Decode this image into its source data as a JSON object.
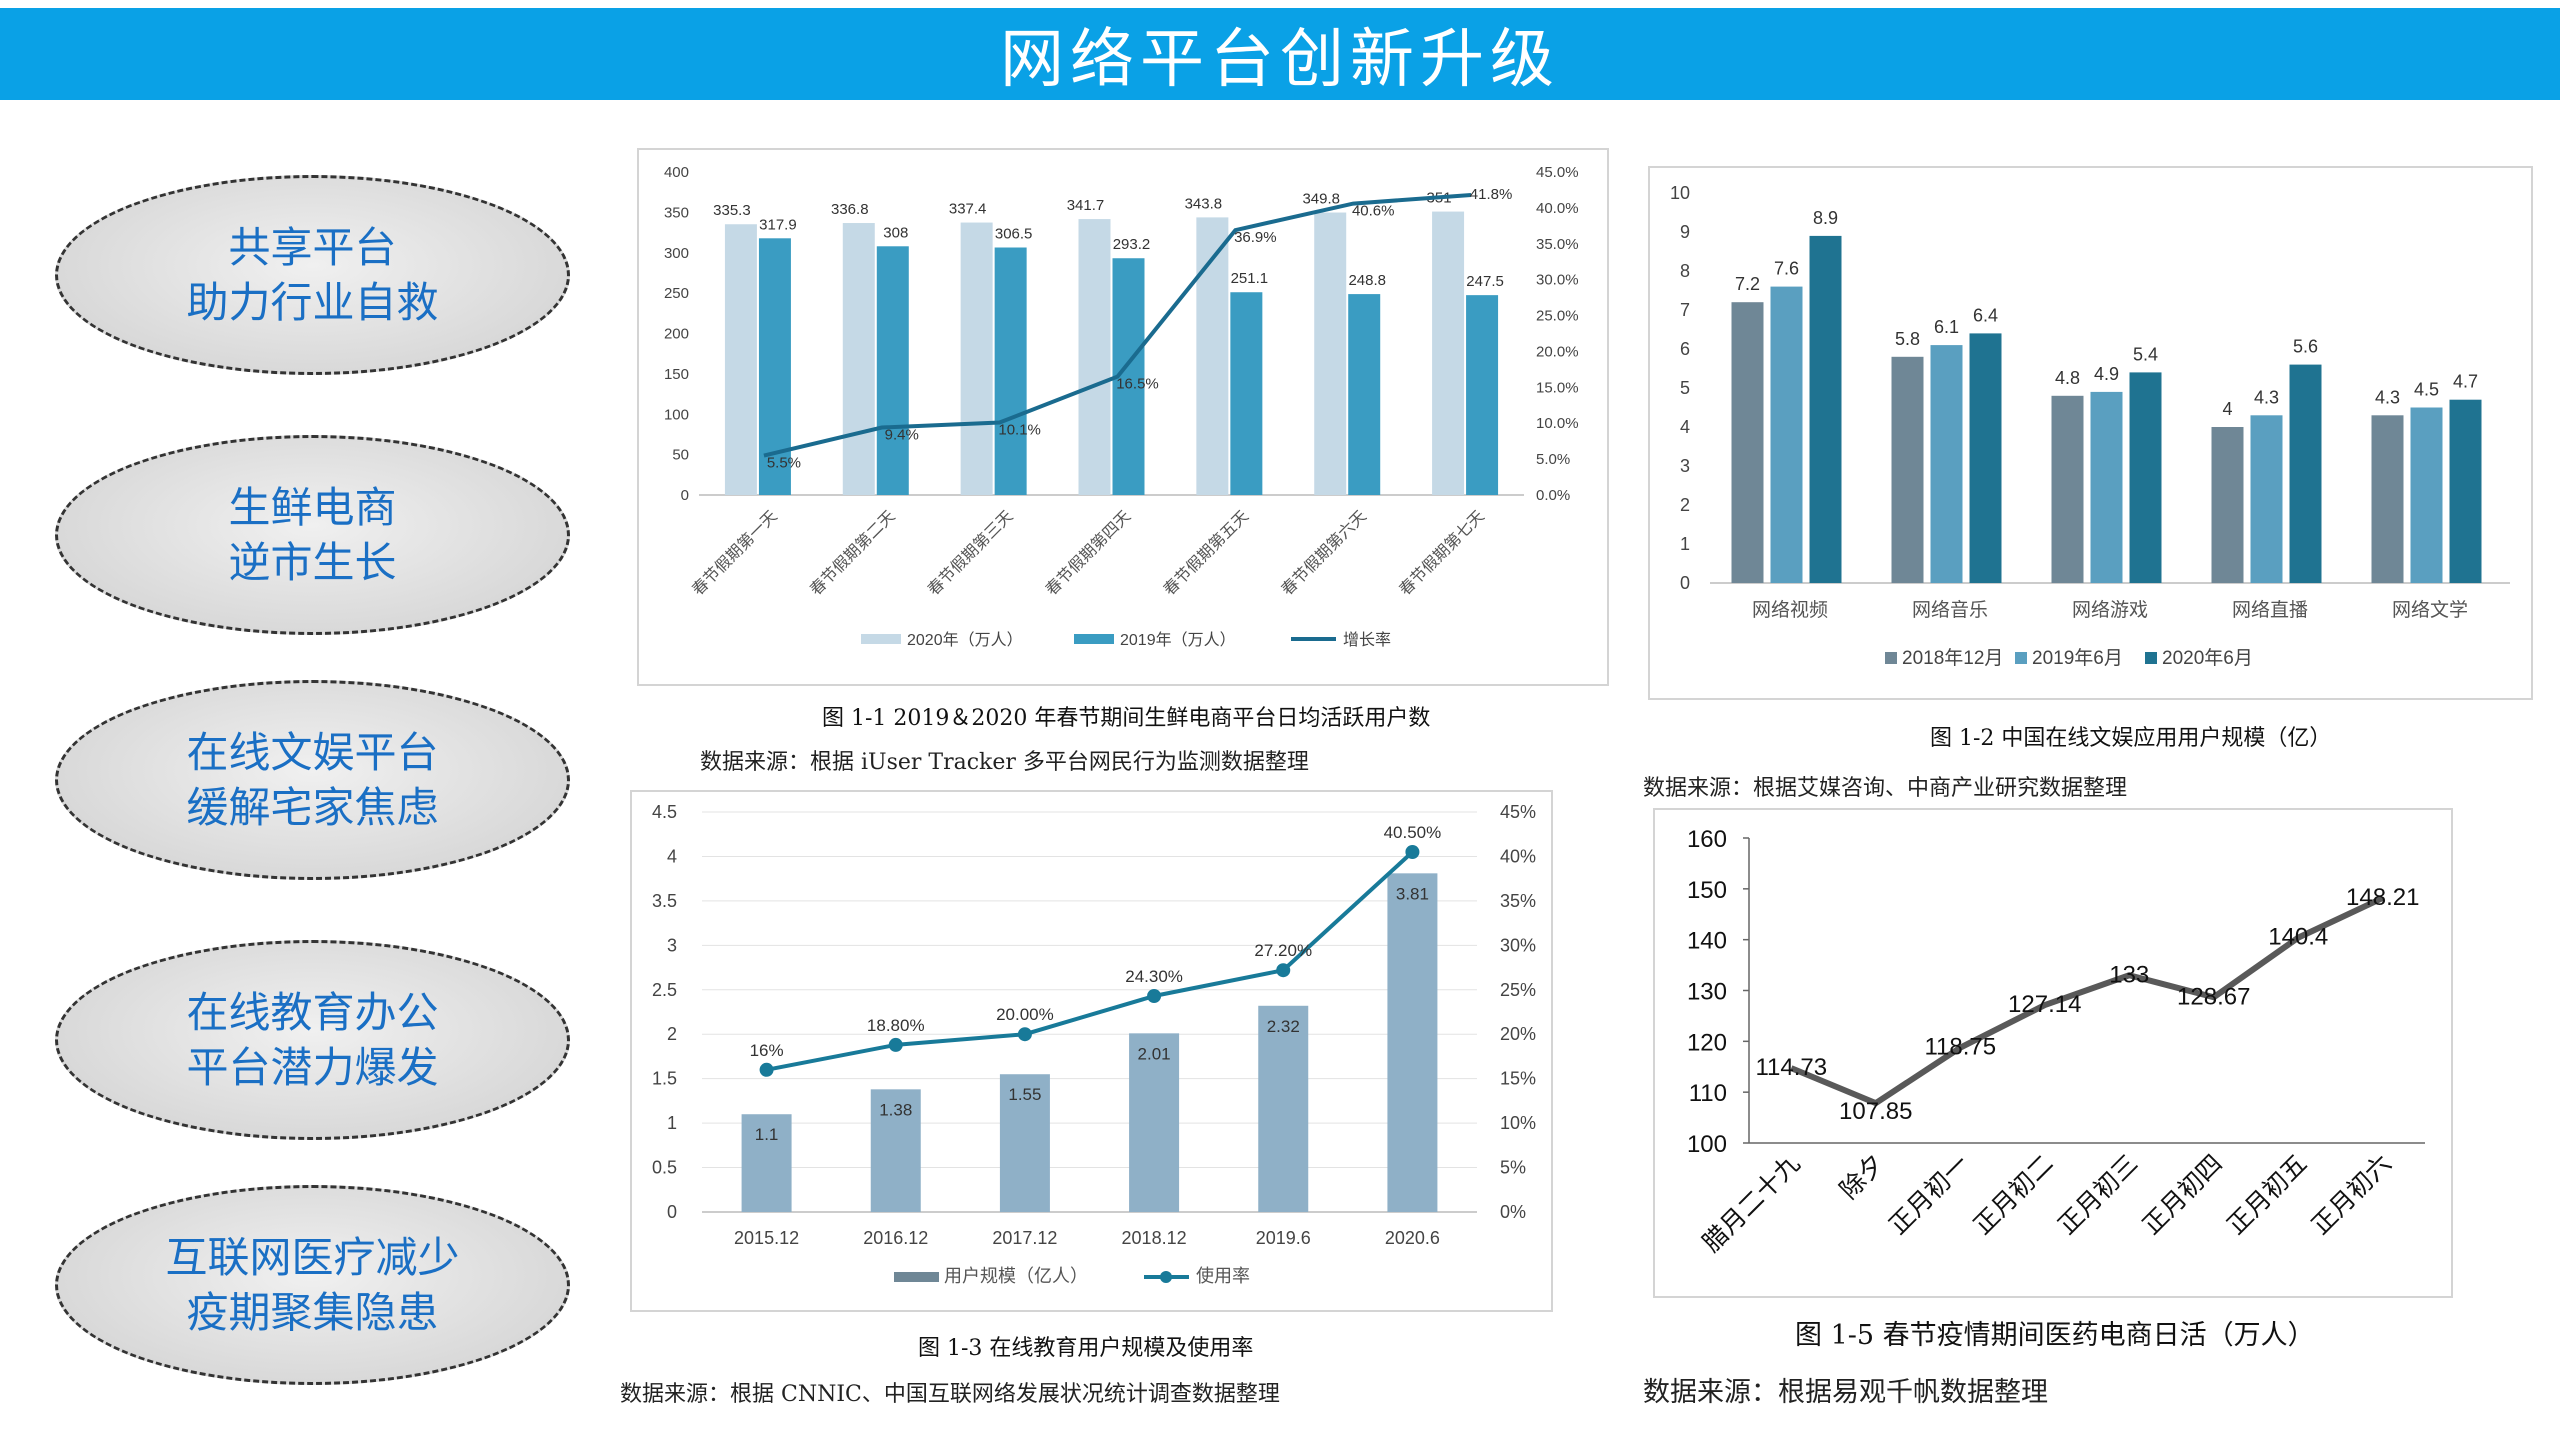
{
  "header": {
    "title": "网络平台创新升级"
  },
  "ovals": [
    {
      "line1": "共享平台",
      "line2": "助力行业自救"
    },
    {
      "line1": "生鲜电商",
      "line2": "逆市生长"
    },
    {
      "line1": "在线文娱平台",
      "line2": "缓解宅家焦虑"
    },
    {
      "line1": "在线教育办公",
      "line2": "平台潜力爆发"
    },
    {
      "line1": "互联网医疗减少",
      "line2": "疫期聚集隐患"
    }
  ],
  "captions": {
    "fig1": "图 1-1 2019＆2020 年春节期间生鲜电商平台日均活跃用户数",
    "fig1_src": "数据来源：根据 iUser Tracker 多平台网民行为监测数据整理",
    "fig2": "图 1-2 中国在线文娱应用用户规模（亿）",
    "fig2_src": "数据来源：根据艾媒咨询、中商产业研究数据整理",
    "fig3": "图 1-3 在线教育用户规模及使用率",
    "fig3_src": "数据来源：根据 CNNIC、中国互联网络发展状况统计调查数据整理",
    "fig5": "图 1-5 春节疫情期间医药电商日活（万人）",
    "fig5_src": "数据来源：根据易观千帆数据整理"
  },
  "colors": {
    "banner": "#0aa1e6",
    "oval_text": "#1a6fc4",
    "line": "#1a6b8f",
    "bar_light": "#c5d9e6",
    "bar_teal": "#3a9cc2",
    "bar_grey": "#6f8796",
    "bar_edu": "#8fb0c7",
    "line5": "#595959"
  },
  "chart_data": [
    {
      "id": "fig1",
      "type": "bar",
      "categories": [
        "春节假期第一天",
        "春节假期第二天",
        "春节假期第三天",
        "春节假期第四天",
        "春节假期第五天",
        "春节假期第六天",
        "春节假期第七天"
      ],
      "series": [
        {
          "name": "2020年（万人）",
          "values": [
            335.3,
            336.8,
            337.4,
            341.7,
            343.8,
            349.8,
            351
          ]
        },
        {
          "name": "2019年（万人）",
          "values": [
            317.9,
            308,
            306.5,
            293.2,
            251.1,
            248.8,
            247.5
          ]
        },
        {
          "name": "增长率",
          "type": "line",
          "axis": "right",
          "values": [
            5.5,
            9.4,
            10.1,
            16.5,
            36.9,
            40.6,
            41.8
          ],
          "labels": [
            "5.5%",
            "9.4%",
            "10.1%",
            "16.5%",
            "36.9%",
            "40.6%",
            "41.8%"
          ]
        }
      ],
      "ylim": [
        0,
        400
      ],
      "yticks": [
        "0",
        "50",
        "100",
        "150",
        "200",
        "250",
        "300",
        "350",
        "400"
      ],
      "y2lim": [
        0,
        45
      ],
      "y2ticks": [
        "0.0%",
        "5.0%",
        "10.0%",
        "15.0%",
        "20.0%",
        "25.0%",
        "30.0%",
        "35.0%",
        "40.0%",
        "45.0%"
      ],
      "legend": "bottom"
    },
    {
      "id": "fig2",
      "type": "bar",
      "categories": [
        "网络视频",
        "网络音乐",
        "网络游戏",
        "网络直播",
        "网络文学"
      ],
      "series": [
        {
          "name": "2018年12月",
          "values": [
            7.2,
            5.8,
            4.8,
            4,
            4.3
          ]
        },
        {
          "name": "2019年6月",
          "values": [
            7.6,
            6.1,
            4.9,
            4.3,
            4.5
          ]
        },
        {
          "name": "2020年6月",
          "values": [
            8.9,
            6.4,
            5.4,
            5.6,
            4.7
          ]
        }
      ],
      "ylim": [
        0,
        10
      ],
      "yticks": [
        "0",
        "1",
        "2",
        "3",
        "4",
        "5",
        "6",
        "7",
        "8",
        "9",
        "10"
      ],
      "legend": "bottom"
    },
    {
      "id": "fig3",
      "type": "bar",
      "categories": [
        "2015.12",
        "2016.12",
        "2017.12",
        "2018.12",
        "2019.6",
        "2020.6"
      ],
      "series": [
        {
          "name": "用户规模（亿人）",
          "values": [
            1.1,
            1.38,
            1.55,
            2.01,
            2.32,
            3.81
          ]
        },
        {
          "name": "使用率",
          "type": "line",
          "axis": "right",
          "values": [
            16,
            18.8,
            20,
            24.3,
            27.2,
            40.5
          ],
          "labels": [
            "16%",
            "18.80%",
            "20.00%",
            "24.30%",
            "27.20%",
            "40.50%"
          ]
        }
      ],
      "ylim": [
        0,
        4.5
      ],
      "yticks": [
        "0",
        "0.5",
        "1",
        "1.5",
        "2",
        "2.5",
        "3",
        "3.5",
        "4",
        "4.5"
      ],
      "y2lim": [
        0,
        45
      ],
      "y2ticks": [
        "0%",
        "5%",
        "10%",
        "15%",
        "20%",
        "25%",
        "30%",
        "35%",
        "40%",
        "45%"
      ],
      "legend": "bottom"
    },
    {
      "id": "fig5",
      "type": "line",
      "categories": [
        "腊月二十九",
        "除夕",
        "正月初一",
        "正月初二",
        "正月初三",
        "正月初四",
        "正月初五",
        "正月初六"
      ],
      "series": [
        {
          "values": [
            114.73,
            107.85,
            118.75,
            127.14,
            133,
            128.67,
            140.4,
            148.21
          ]
        }
      ],
      "ylim": [
        100,
        160
      ],
      "yticks": [
        "100",
        "110",
        "120",
        "130",
        "140",
        "150",
        "160"
      ],
      "legend": "none"
    }
  ]
}
